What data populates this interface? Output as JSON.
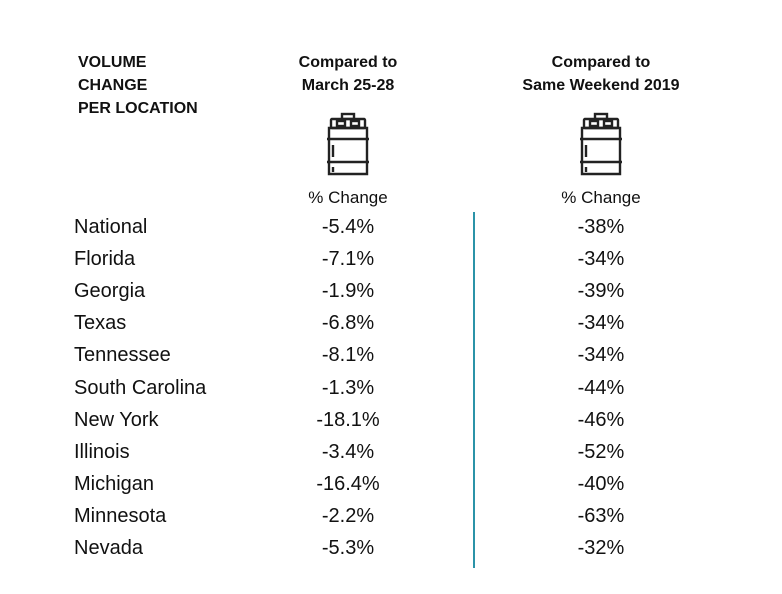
{
  "header": {
    "left_lines": [
      "VOLUME",
      "CHANGE",
      "PER LOCATION"
    ],
    "col1_lines": [
      "Compared to",
      "March 25-28"
    ],
    "col2_lines": [
      "Compared to",
      "Same Weekend 2019"
    ],
    "col1_sub": "% Change",
    "col2_sub": "% Change",
    "icon": "keg-icon"
  },
  "chart_data": {
    "type": "table",
    "columns": [
      "VOLUME CHANGE PER LOCATION",
      "Compared to March 25-28 % Change",
      "Compared to Same Weekend 2019 % Change"
    ],
    "rows": [
      {
        "location": "National",
        "vs_march": "-5.4%",
        "vs_2019": "-38%"
      },
      {
        "location": "Florida",
        "vs_march": "-7.1%",
        "vs_2019": "-34%"
      },
      {
        "location": "Georgia",
        "vs_march": "-1.9%",
        "vs_2019": "-39%"
      },
      {
        "location": "Texas",
        "vs_march": "-6.8%",
        "vs_2019": "-34%"
      },
      {
        "location": "Tennessee",
        "vs_march": "-8.1%",
        "vs_2019": "-34%"
      },
      {
        "location": "South Carolina",
        "vs_march": "-1.3%",
        "vs_2019": "-44%"
      },
      {
        "location": "New York",
        "vs_march": "-18.1%",
        "vs_2019": "-46%"
      },
      {
        "location": "Illinois",
        "vs_march": "-3.4%",
        "vs_2019": "-52%"
      },
      {
        "location": "Michigan",
        "vs_march": "-16.4%",
        "vs_2019": "-40%"
      },
      {
        "location": "Minnesota",
        "vs_march": "-2.2%",
        "vs_2019": "-63%"
      },
      {
        "location": "Nevada",
        "vs_march": "-5.3%",
        "vs_2019": "-32%"
      }
    ]
  },
  "colors": {
    "divider": "#2b93a8",
    "text": "#111111"
  }
}
